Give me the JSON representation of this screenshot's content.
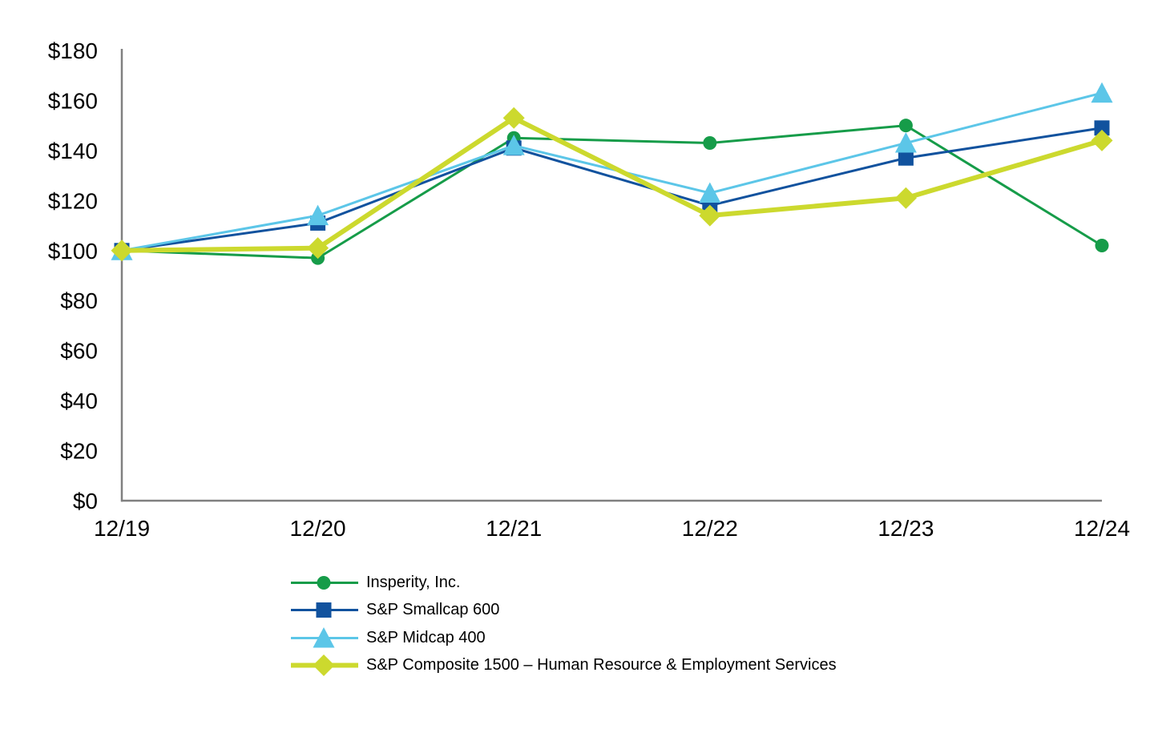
{
  "chart_data": {
    "type": "line",
    "title": "",
    "xlabel": "",
    "ylabel": "",
    "categories": [
      "12/19",
      "12/20",
      "12/21",
      "12/22",
      "12/23",
      "12/24"
    ],
    "series": [
      {
        "name": "Insperity, Inc.",
        "marker": "circle",
        "color": "#169c49",
        "line_width": 3,
        "values": [
          100,
          97,
          145,
          143,
          150,
          102
        ]
      },
      {
        "name": "S&P Smallcap 600",
        "marker": "square",
        "color": "#11529e",
        "line_width": 3,
        "values": [
          100,
          111,
          141,
          118,
          137,
          149
        ]
      },
      {
        "name": "S&P Midcap 400",
        "marker": "triangle",
        "color": "#5cc6e8",
        "line_width": 3,
        "values": [
          100,
          114,
          142,
          123,
          143,
          163
        ]
      },
      {
        "name": "S&P Composite 1500 – Human Resource & Employment Services",
        "marker": "diamond",
        "color": "#ccd92e",
        "line_width": 6,
        "values": [
          100,
          101,
          153,
          114,
          121,
          144
        ]
      }
    ],
    "y_ticks": [
      "$0",
      "$20",
      "$40",
      "$60",
      "$80",
      "$100",
      "$120",
      "$140",
      "$160",
      "$180"
    ],
    "ylim": [
      0,
      180
    ],
    "y_tick_interval": 20,
    "currency_prefix": "$",
    "grid": false,
    "legend_position": "bottom-left",
    "axis_color": "#808080",
    "text_color": "#000000"
  }
}
